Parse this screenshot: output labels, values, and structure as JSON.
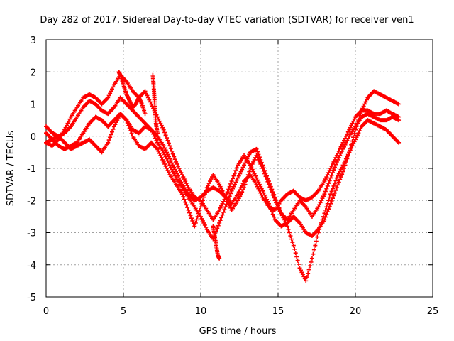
{
  "chart_data": {
    "type": "scatter",
    "title": "Day 282 of 2017, Sidereal Day-to-day VTEC variation (SDTVAR) for receiver ven1",
    "xlabel": "GPS time / hours",
    "ylabel": "SDTVAR / TECUs",
    "xlim": [
      0,
      25
    ],
    "ylim": [
      -5,
      3
    ],
    "x_ticks": [
      0,
      5,
      10,
      15,
      20,
      25
    ],
    "y_ticks": [
      -5,
      -4,
      -3,
      -2,
      -1,
      0,
      1,
      2,
      3
    ],
    "grid": true,
    "marker": "+",
    "color": "#ff0000",
    "series": [
      {
        "x": [
          0.0,
          0.4,
          0.8,
          1.2,
          1.6,
          2.0,
          2.4,
          2.8,
          3.2,
          3.6,
          4.0,
          4.4,
          4.8,
          5.2,
          5.6,
          6.0,
          6.4,
          6.8,
          7.2,
          7.6,
          8.0,
          8.4,
          8.8,
          9.2,
          9.6,
          10.0,
          10.4,
          10.8,
          11.2,
          11.6,
          12.0,
          12.4,
          12.8,
          13.2,
          13.6,
          14.0,
          14.4,
          14.8,
          15.2,
          15.6,
          16.0,
          16.4,
          16.8,
          17.2,
          17.6,
          18.0,
          18.4,
          18.8,
          19.2,
          19.6,
          20.0,
          20.4,
          20.8,
          21.2,
          21.6,
          22.0,
          22.4,
          22.8
        ],
        "y": [
          0.3,
          0.1,
          0.0,
          0.1,
          0.3,
          0.6,
          0.9,
          1.1,
          1.0,
          0.8,
          0.7,
          0.9,
          1.2,
          1.0,
          0.8,
          0.6,
          0.4,
          0.2,
          0.0,
          -0.3,
          -0.7,
          -1.1,
          -1.5,
          -1.8,
          -2.0,
          -1.9,
          -1.7,
          -1.6,
          -1.7,
          -1.9,
          -2.1,
          -1.8,
          -1.4,
          -1.2,
          -1.5,
          -1.9,
          -2.2,
          -2.3,
          -2.0,
          -1.8,
          -1.7,
          -1.9,
          -2.0,
          -1.9,
          -1.7,
          -1.4,
          -1.0,
          -0.6,
          -0.2,
          0.2,
          0.6,
          0.8,
          0.8,
          0.7,
          0.7,
          0.8,
          0.7,
          0.6
        ]
      },
      {
        "x": [
          0.0,
          0.4,
          0.8,
          1.2,
          1.6,
          2.0,
          2.4,
          2.8,
          3.2,
          3.6,
          4.0,
          4.4,
          4.8,
          5.2,
          5.6,
          6.0,
          6.4,
          6.8,
          7.2,
          7.6,
          8.0,
          8.4,
          8.8,
          9.2,
          9.6,
          10.0,
          10.4,
          10.8,
          11.2,
          11.6,
          12.0,
          12.4,
          12.8,
          13.2,
          13.6,
          14.0,
          14.4,
          14.8,
          15.2,
          15.6,
          16.0,
          16.4,
          16.8,
          17.2,
          17.6,
          18.0,
          18.4,
          18.8,
          19.2,
          19.6,
          20.0,
          20.4,
          20.8,
          21.2,
          21.6,
          22.0,
          22.4,
          22.8
        ],
        "y": [
          -0.2,
          -0.3,
          -0.1,
          0.2,
          0.6,
          0.9,
          1.2,
          1.3,
          1.2,
          1.0,
          1.2,
          1.6,
          1.9,
          1.7,
          1.4,
          1.2,
          1.4,
          1.0,
          0.6,
          0.2,
          -0.3,
          -0.8,
          -1.2,
          -1.6,
          -1.9,
          -2.0,
          -2.3,
          -2.6,
          -2.3,
          -1.9,
          -1.4,
          -0.9,
          -0.6,
          -0.9,
          -1.3,
          -1.7,
          -2.1,
          -2.6,
          -2.8,
          -2.7,
          -2.5,
          -2.7,
          -3.0,
          -3.1,
          -2.9,
          -2.6,
          -2.1,
          -1.6,
          -1.1,
          -0.5,
          0.2,
          0.8,
          1.2,
          1.4,
          1.3,
          1.2,
          1.1,
          1.0
        ]
      },
      {
        "x": [
          0.0,
          0.4,
          0.8,
          1.2,
          1.6,
          2.0,
          2.4,
          2.8,
          3.2,
          3.6,
          4.0,
          4.4,
          4.8,
          5.2,
          5.6,
          6.0,
          6.4,
          6.8,
          7.2,
          7.6,
          8.0,
          8.4,
          8.8,
          9.2,
          9.6,
          10.0,
          10.4,
          10.8,
          11.2,
          11.6,
          12.0,
          12.4,
          12.8,
          13.2,
          13.6,
          14.0,
          14.4,
          14.8,
          15.2,
          15.6,
          16.0,
          16.4,
          16.8,
          17.2,
          17.6,
          18.0,
          18.4,
          18.8,
          19.2,
          19.6,
          20.0,
          20.4,
          20.8,
          21.2,
          21.6,
          22.0,
          22.4,
          22.8
        ],
        "y": [
          0.1,
          -0.1,
          -0.3,
          -0.4,
          -0.3,
          -0.2,
          0.1,
          0.4,
          0.6,
          0.5,
          0.3,
          0.5,
          0.7,
          0.5,
          0.2,
          0.1,
          0.3,
          0.2,
          -0.2,
          -0.5,
          -0.9,
          -1.3,
          -1.6,
          -1.9,
          -2.2,
          -2.5,
          -2.9,
          -3.2,
          -2.7,
          -2.2,
          -1.7,
          -1.3,
          -0.9,
          -0.5,
          -0.4,
          -0.9,
          -1.4,
          -1.9,
          -2.4,
          -2.6,
          -2.3,
          -2.0,
          -2.2,
          -2.5,
          -2.2,
          -1.8,
          -1.3,
          -0.8,
          -0.4,
          0.0,
          0.3,
          0.6,
          0.7,
          0.6,
          0.5,
          0.5,
          0.6,
          0.5
        ]
      },
      {
        "x": [
          0.0,
          0.4,
          0.8,
          1.2,
          1.6,
          2.0,
          2.4,
          2.8,
          3.2,
          3.6,
          4.0,
          4.4,
          4.8,
          5.2,
          5.6,
          6.0,
          6.4,
          6.8,
          7.2,
          7.6,
          8.0,
          8.4,
          8.8,
          9.2,
          9.6,
          10.0,
          10.4,
          10.8,
          11.2,
          11.6,
          12.0,
          12.4,
          12.8,
          13.2,
          13.6,
          14.0,
          14.4,
          14.8,
          15.2,
          15.6,
          16.0,
          16.4,
          16.8,
          17.2,
          17.6,
          18.0,
          18.4,
          18.8,
          19.2,
          19.6,
          20.0,
          20.4,
          20.8,
          21.2,
          21.6,
          22.0,
          22.4,
          22.8
        ],
        "y": [
          -0.2,
          -0.1,
          0.0,
          -0.2,
          -0.4,
          -0.3,
          -0.2,
          -0.1,
          -0.3,
          -0.5,
          -0.2,
          0.3,
          0.7,
          0.5,
          0.0,
          -0.3,
          -0.4,
          -0.2,
          -0.4,
          -0.8,
          -1.2,
          -1.5,
          -1.8,
          -2.3,
          -2.8,
          -2.2,
          -1.6,
          -1.2,
          -1.5,
          -1.9,
          -2.3,
          -2.0,
          -1.6,
          -1.0,
          -0.6,
          -1.0,
          -1.5,
          -2.0,
          -2.4,
          -2.8,
          -3.4,
          -4.1,
          -4.5,
          -3.8,
          -3.0,
          -2.4,
          -1.8,
          -1.3,
          -0.9,
          -0.5,
          -0.1,
          0.3,
          0.5,
          0.4,
          0.3,
          0.2,
          0.0,
          -0.2
        ]
      },
      {
        "x": [
          4.7,
          4.8,
          5.0,
          5.2,
          5.4,
          5.6,
          5.8,
          6.0,
          6.2,
          6.4
        ],
        "y": [
          2.0,
          1.9,
          1.6,
          1.3,
          1.1,
          0.9,
          1.0,
          1.2,
          1.0,
          0.7
        ]
      },
      {
        "x": [
          6.9,
          6.95,
          7.0,
          7.05,
          7.1,
          7.2
        ],
        "y": [
          1.9,
          1.6,
          1.2,
          0.8,
          0.4,
          0.1
        ]
      },
      {
        "x": [
          10.8,
          10.9,
          11.0,
          11.1,
          11.2
        ],
        "y": [
          -2.8,
          -3.1,
          -3.4,
          -3.7,
          -3.8
        ]
      }
    ]
  }
}
